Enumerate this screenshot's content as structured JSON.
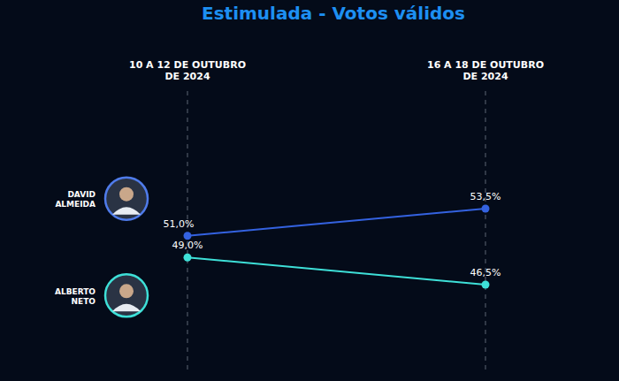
{
  "chart_data": {
    "type": "line",
    "title": "Estimulada - Votos válidos",
    "categories": [
      "10 A 12 DE OUTUBRO DE 2024",
      "16 A 18 DE OUTUBRO DE 2024"
    ],
    "series": [
      {
        "name": "DAVID ALMEIDA",
        "color": "#3462e0",
        "values": [
          51.0,
          53.5
        ],
        "value_labels": [
          "51,0%",
          "53,5%"
        ],
        "marker": "circle"
      },
      {
        "name": "ALBERTO NETO",
        "color": "#3ee0d8",
        "values": [
          49.0,
          46.5
        ],
        "value_labels": [
          "49,0%",
          "46,5%"
        ],
        "marker": "circle"
      }
    ],
    "data_labels": true,
    "grid": true,
    "legend": "left",
    "tick_labels": "x"
  }
}
